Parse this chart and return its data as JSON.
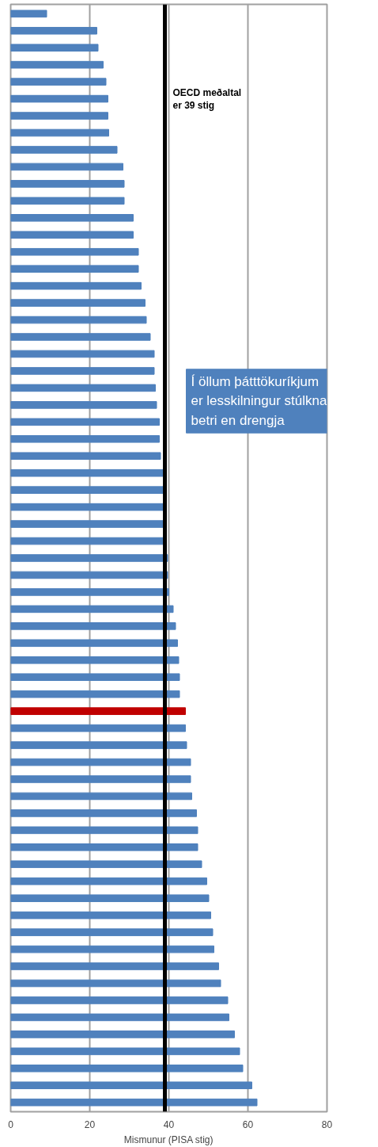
{
  "chart_data": {
    "type": "bar",
    "orientation": "horizontal",
    "xlabel": "Mismunur (PISA stig)",
    "categories": [
      null,
      null,
      null,
      null,
      null,
      null,
      null,
      null,
      null,
      null,
      null,
      null,
      null,
      null,
      null,
      null,
      null,
      null,
      null,
      null,
      null,
      null,
      null,
      null,
      null,
      null,
      null,
      null,
      null,
      null,
      null,
      null,
      null,
      null,
      null,
      null,
      null,
      null,
      null,
      null,
      null,
      null,
      null,
      null,
      null,
      null,
      null,
      null,
      null,
      null,
      null,
      null,
      null,
      null,
      null,
      null,
      null,
      null,
      null,
      null,
      null,
      null,
      null,
      null,
      null
    ],
    "values": [
      9.1,
      21.8,
      22.1,
      23.4,
      24.1,
      24.6,
      24.6,
      24.8,
      26.9,
      28.4,
      28.7,
      28.7,
      31.0,
      31.0,
      32.3,
      32.3,
      33.0,
      34.0,
      34.3,
      35.3,
      36.3,
      36.3,
      36.6,
      36.9,
      37.6,
      37.6,
      37.9,
      38.6,
      38.7,
      38.8,
      38.9,
      39.0,
      39.7,
      39.7,
      40.0,
      41.1,
      41.7,
      42.2,
      42.5,
      42.7,
      42.7,
      44.2,
      44.2,
      44.5,
      45.5,
      45.5,
      45.8,
      47.0,
      47.3,
      47.3,
      48.3,
      49.6,
      50.1,
      50.6,
      51.1,
      51.4,
      52.6,
      53.1,
      54.9,
      55.2,
      56.6,
      57.9,
      58.7,
      61.0,
      62.3
    ],
    "colors": [
      "#4f81bd",
      "#4f81bd",
      "#4f81bd",
      "#4f81bd",
      "#4f81bd",
      "#4f81bd",
      "#4f81bd",
      "#4f81bd",
      "#4f81bd",
      "#4f81bd",
      "#4f81bd",
      "#4f81bd",
      "#4f81bd",
      "#4f81bd",
      "#4f81bd",
      "#4f81bd",
      "#4f81bd",
      "#4f81bd",
      "#4f81bd",
      "#4f81bd",
      "#4f81bd",
      "#4f81bd",
      "#4f81bd",
      "#4f81bd",
      "#4f81bd",
      "#4f81bd",
      "#4f81bd",
      "#4f81bd",
      "#4f81bd",
      "#4f81bd",
      "#4f81bd",
      "#4f81bd",
      "#4f81bd",
      "#4f81bd",
      "#4f81bd",
      "#4f81bd",
      "#4f81bd",
      "#4f81bd",
      "#4f81bd",
      "#4f81bd",
      "#4f81bd",
      "#c00000",
      "#4f81bd",
      "#4f81bd",
      "#4f81bd",
      "#4f81bd",
      "#4f81bd",
      "#4f81bd",
      "#4f81bd",
      "#4f81bd",
      "#4f81bd",
      "#4f81bd",
      "#4f81bd",
      "#4f81bd",
      "#4f81bd",
      "#4f81bd",
      "#4f81bd",
      "#4f81bd",
      "#4f81bd",
      "#4f81bd",
      "#4f81bd",
      "#4f81bd",
      "#4f81bd",
      "#4f81bd",
      "#4f81bd"
    ],
    "xlim": [
      0,
      80
    ],
    "xticks": [
      0,
      20,
      40,
      60,
      80
    ],
    "grid": "x",
    "ref_lines": [
      {
        "axis": "x",
        "value": 39,
        "label": "OECD meðaltal er 39 stig",
        "color": "#000000"
      }
    ],
    "annotations": [
      "Í öllum þátttökuríkjum er lesskilningur stúlkna betri en drengja"
    ]
  }
}
